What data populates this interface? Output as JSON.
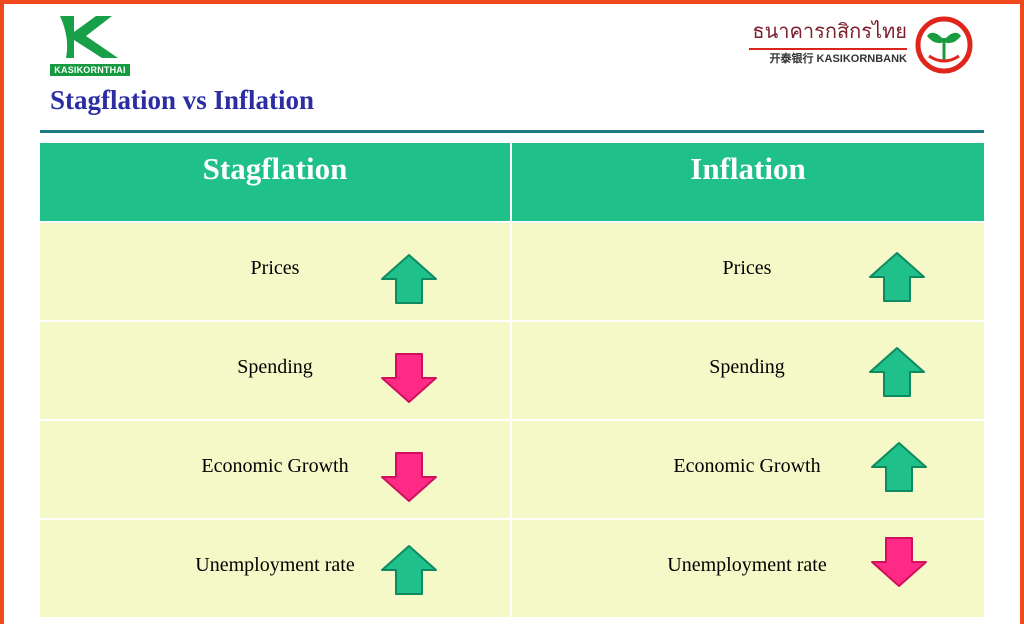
{
  "brand_left": {
    "label": "KASIKORNTHAI",
    "color": "#159a3f"
  },
  "brand_right": {
    "thai": "ธนาคารกสิกรไทย",
    "english": "开泰银行 KASIKORNBANK",
    "emblem": "kasikorn-rice-plant-emblem"
  },
  "title": "Stagflation vs Inflation",
  "colors": {
    "frame": "#ee4a1c",
    "title": "#2b2ea3",
    "header_bg": "#1fc08a",
    "cell_bg": "#f5f9c8",
    "arrow_up": "#1fc08a",
    "arrow_down": "#ff2a86"
  },
  "table": {
    "columns": [
      {
        "header": "Stagflation",
        "rows": [
          {
            "label": "Prices",
            "direction": "up"
          },
          {
            "label": "Spending",
            "direction": "down"
          },
          {
            "label": "Economic Growth",
            "direction": "down"
          },
          {
            "label": "Unemployment rate",
            "direction": "up"
          }
        ]
      },
      {
        "header": "Inflation",
        "rows": [
          {
            "label": "Prices",
            "direction": "up"
          },
          {
            "label": "Spending",
            "direction": "up"
          },
          {
            "label": "Economic Growth",
            "direction": "up"
          },
          {
            "label": "Unemployment rate",
            "direction": "down"
          }
        ]
      }
    ]
  }
}
